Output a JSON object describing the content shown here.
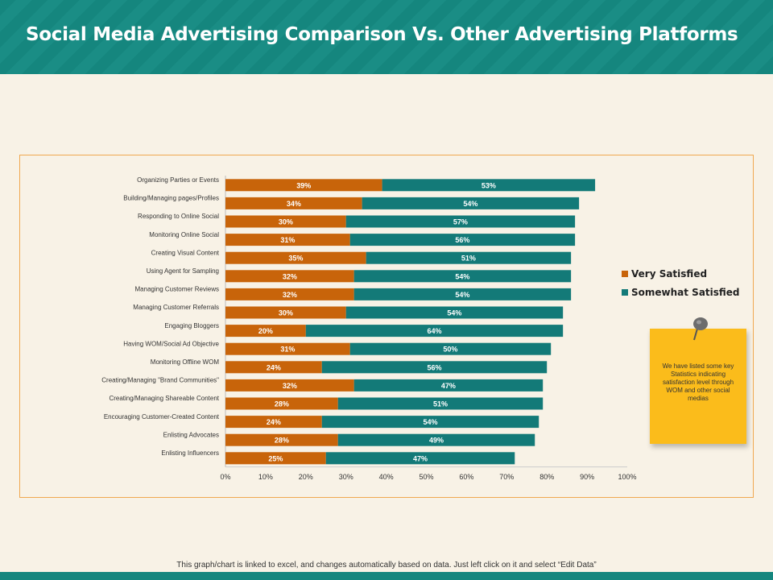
{
  "header": {
    "title": "Social Media Advertising Comparison Vs. Other Advertising Platforms"
  },
  "colors": {
    "very_satisfied": "#c8640a",
    "somewhat_satisfied": "#137a78",
    "accent": "#15867e",
    "note": "#fbbc1b"
  },
  "chart_data": {
    "type": "bar",
    "orientation": "horizontal",
    "stacked": true,
    "categories": [
      "Organizing Parties or Events",
      "Building/Managing pages/Profiles",
      "Responding to Online Social",
      "Monitoring Online Social",
      "Creating Visual Content",
      "Using Agent for Sampling",
      "Managing Customer Reviews",
      "Managing Customer Referrals",
      "Engaging Bloggers",
      "Having WOM/Social Ad Objective",
      "Monitoring Offline WOM",
      "Creating/Managing \"Brand Communities\"",
      "Creating/Managing Shareable Content",
      "Encouraging Customer-Created Content",
      "Enlisting Advocates",
      "Enlisting Influencers"
    ],
    "series": [
      {
        "name": "Very Satisfied",
        "values": [
          39,
          34,
          30,
          31,
          35,
          32,
          32,
          30,
          20,
          31,
          24,
          32,
          28,
          24,
          28,
          25
        ]
      },
      {
        "name": "Somewhat Satisfied",
        "values": [
          53,
          54,
          57,
          56,
          51,
          54,
          54,
          54,
          64,
          50,
          56,
          47,
          51,
          54,
          49,
          47
        ]
      }
    ],
    "xlim": [
      0,
      100
    ],
    "xticks": [
      "0%",
      "10%",
      "20%",
      "30%",
      "40%",
      "50%",
      "60%",
      "70%",
      "80%",
      "90%",
      "100%"
    ],
    "value_suffix": "%",
    "legend_position": "right"
  },
  "legend": {
    "items": [
      "Very Satisfied",
      "Somewhat Satisfied"
    ]
  },
  "note": {
    "text": "We have listed some key Statistics indicating satisfaction level through WOM and other social medias"
  },
  "footer": {
    "text": "This graph/chart is linked to excel, and changes automatically based on data. Just left click on it and select “Edit Data”"
  }
}
